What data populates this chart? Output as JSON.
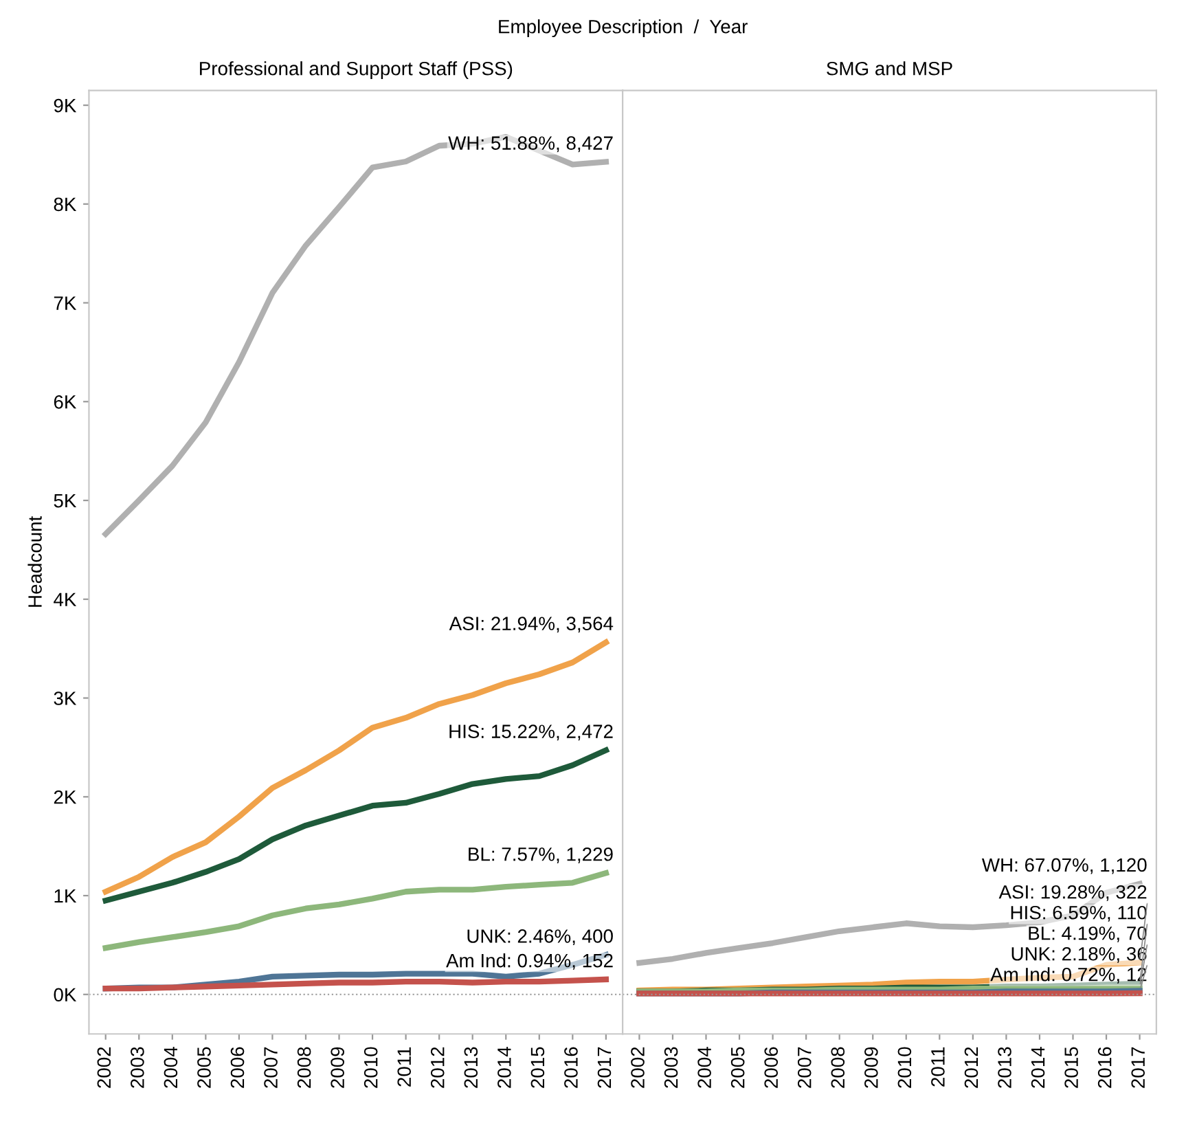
{
  "chart_data": [
    {
      "type": "line",
      "subtitle": "Employee Description  /  Year",
      "title": "Professional and Support Staff (PSS)",
      "ylabel": "Headcount",
      "categories": [
        "2002",
        "2003",
        "2004",
        "2005",
        "2006",
        "2007",
        "2008",
        "2009",
        "2010",
        "2011",
        "2012",
        "2013",
        "2014",
        "2015",
        "2016",
        "2017"
      ],
      "series": [
        {
          "color": "#b0b0b0",
          "values": [
            4660,
            5000,
            5350,
            5790,
            6400,
            7100,
            7580,
            7970,
            8370,
            8430,
            8590,
            8610,
            8680,
            8540,
            8400,
            8427
          ]
        },
        {
          "color": "#f0a24a",
          "values": [
            1040,
            1190,
            1390,
            1540,
            1800,
            2090,
            2270,
            2470,
            2700,
            2800,
            2940,
            3030,
            3150,
            3240,
            3360,
            3564
          ]
        },
        {
          "color": "#1e5a3a",
          "values": [
            950,
            1040,
            1130,
            1240,
            1370,
            1570,
            1710,
            1810,
            1910,
            1940,
            2030,
            2130,
            2180,
            2210,
            2320,
            2472
          ]
        },
        {
          "color": "#8db77b",
          "values": [
            470,
            530,
            580,
            630,
            690,
            800,
            870,
            910,
            970,
            1040,
            1060,
            1060,
            1090,
            1110,
            1130,
            1229
          ]
        },
        {
          "color": "#4f7596",
          "values": [
            60,
            70,
            70,
            100,
            130,
            180,
            190,
            200,
            200,
            210,
            210,
            210,
            180,
            210,
            300,
            400
          ]
        },
        {
          "color": "#c4524c",
          "values": [
            60,
            60,
            70,
            80,
            90,
            100,
            110,
            120,
            120,
            130,
            130,
            120,
            130,
            130,
            140,
            152
          ]
        }
      ],
      "annotations": [
        {
          "text": "WH: 51.88%, 8,427",
          "x": "2017",
          "y": 8427
        },
        {
          "text": "ASI: 21.94%, 3,564",
          "x": "2017",
          "y": 3564
        },
        {
          "text": "HIS: 15.22%, 2,472",
          "x": "2017",
          "y": 2472
        },
        {
          "text": "BL: 7.57%, 1,229",
          "x": "2017",
          "y": 1229
        },
        {
          "text": "UNK: 2.46%, 400",
          "x": "2017",
          "y": 400
        },
        {
          "text": "Am Ind: 0.94%, 152",
          "x": "2017",
          "y": 152
        }
      ],
      "ylim": [
        -400,
        9150
      ],
      "yticks": [
        {
          "value": 0,
          "label": "0K"
        },
        {
          "value": 1000,
          "label": "1K"
        },
        {
          "value": 2000,
          "label": "2K"
        },
        {
          "value": 3000,
          "label": "3K"
        },
        {
          "value": 4000,
          "label": "4K"
        },
        {
          "value": 5000,
          "label": "5K"
        },
        {
          "value": 6000,
          "label": "6K"
        },
        {
          "value": 7000,
          "label": "7K"
        },
        {
          "value": 8000,
          "label": "8K"
        },
        {
          "value": 9000,
          "label": "9K"
        }
      ],
      "ref_lines": [
        {
          "axis": "y",
          "value": 0,
          "color": "#999999",
          "line_style": "dotted"
        }
      ],
      "grid": false,
      "legend": false
    },
    {
      "type": "line",
      "title": "SMG and MSP",
      "categories": [
        "2002",
        "2003",
        "2004",
        "2005",
        "2006",
        "2007",
        "2008",
        "2009",
        "2010",
        "2011",
        "2012",
        "2013",
        "2014",
        "2015",
        "2016",
        "2017"
      ],
      "series": [
        {
          "color": "#b0b0b0",
          "values": [
            320,
            360,
            420,
            470,
            520,
            580,
            640,
            680,
            720,
            690,
            680,
            700,
            730,
            800,
            1030,
            1120
          ]
        },
        {
          "color": "#f0a24a",
          "values": [
            40,
            50,
            50,
            60,
            70,
            80,
            90,
            100,
            120,
            130,
            130,
            150,
            170,
            180,
            300,
            322
          ]
        },
        {
          "color": "#1e5a3a",
          "values": [
            30,
            30,
            40,
            40,
            50,
            50,
            60,
            60,
            70,
            70,
            70,
            80,
            80,
            90,
            100,
            110
          ]
        },
        {
          "color": "#8db77b",
          "values": [
            30,
            30,
            30,
            40,
            40,
            40,
            50,
            50,
            50,
            50,
            60,
            60,
            60,
            60,
            70,
            70
          ]
        },
        {
          "color": "#4f7596",
          "values": [
            10,
            10,
            10,
            10,
            20,
            20,
            20,
            20,
            20,
            20,
            20,
            30,
            30,
            30,
            30,
            36
          ]
        },
        {
          "color": "#c4524c",
          "values": [
            10,
            10,
            10,
            10,
            10,
            10,
            10,
            10,
            10,
            10,
            10,
            10,
            10,
            10,
            10,
            12
          ]
        }
      ],
      "annotations": [
        {
          "text": "WH: 67.07%, 1,120",
          "x": "2017",
          "y": 1120
        },
        {
          "text": "ASI: 19.28%, 322",
          "x": "2017",
          "y": 322
        },
        {
          "text": "HIS: 6.59%, 110",
          "x": "2017",
          "y": 110
        },
        {
          "text": "BL: 4.19%, 70",
          "x": "2017",
          "y": 70
        },
        {
          "text": "UNK: 2.18%, 36",
          "x": "2017",
          "y": 36
        },
        {
          "text": "Am Ind: 0.72%, 12",
          "x": "2017",
          "y": 12
        }
      ],
      "ylim": [
        -400,
        9150
      ],
      "tick_labels": "x",
      "ref_lines": [
        {
          "axis": "y",
          "value": 0,
          "color": "#999999",
          "line_style": "dotted"
        }
      ],
      "grid": false,
      "legend": false
    }
  ]
}
